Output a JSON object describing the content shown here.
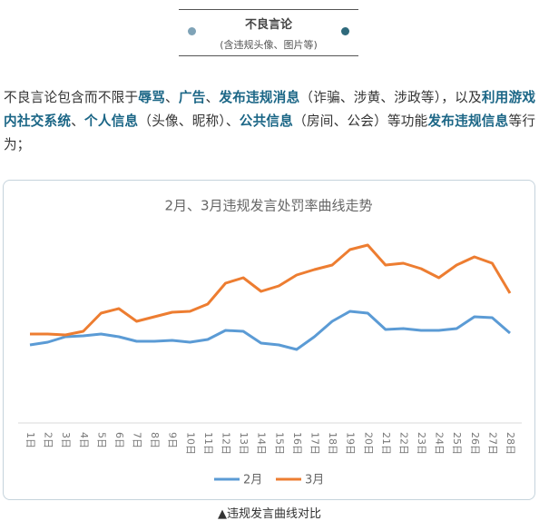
{
  "header": {
    "title": "不良言论",
    "subtitle": "(含违规头像、图片等)"
  },
  "paragraph": [
    {
      "text": "不良言论包含而不限于",
      "strong": false
    },
    {
      "text": "辱骂",
      "strong": true
    },
    {
      "text": "、",
      "strong": false
    },
    {
      "text": "广告",
      "strong": true
    },
    {
      "text": "、",
      "strong": false
    },
    {
      "text": "发布违规消息",
      "strong": true
    },
    {
      "text": "（诈骗、涉黄、涉政等），以及",
      "strong": false
    },
    {
      "text": "利用游戏内社交系统",
      "strong": true
    },
    {
      "text": "、",
      "strong": false
    },
    {
      "text": "个人信息",
      "strong": true
    },
    {
      "text": "（头像、昵称）、",
      "strong": false
    },
    {
      "text": "公共信息",
      "strong": true
    },
    {
      "text": "（房间、公会）等功能",
      "strong": false
    },
    {
      "text": "发布违规信息",
      "strong": true
    },
    {
      "text": "等行为；",
      "strong": false
    }
  ],
  "chart_data": {
    "type": "line",
    "title": "2月、3月违规发言处罚率曲线走势",
    "categories": [
      "1日",
      "2日",
      "3日",
      "4日",
      "5日",
      "6日",
      "7日",
      "8日",
      "9日",
      "10日",
      "11日",
      "12日",
      "13日",
      "14日",
      "15日",
      "16日",
      "17日",
      "18日",
      "19日",
      "20日",
      "21日",
      "22日",
      "23日",
      "24日",
      "25日",
      "26日",
      "27日",
      "28日"
    ],
    "series": [
      {
        "name": "2月",
        "color": "#5b9bd5",
        "values": [
          43,
          44.5,
          47.5,
          48,
          49,
          47.5,
          45,
          45,
          45.5,
          44.5,
          46,
          51,
          50.5,
          44,
          43,
          40.5,
          47.5,
          56,
          61.5,
          60.5,
          51.5,
          52,
          51,
          51,
          52,
          58.5,
          58,
          49.5
        ]
      },
      {
        "name": "3月",
        "color": "#ed7d31",
        "values": [
          49,
          49,
          48.5,
          50.5,
          60.5,
          63,
          56,
          58.5,
          61,
          61.5,
          65.5,
          77,
          80,
          72.5,
          75.5,
          81.5,
          84.5,
          87,
          95.5,
          98,
          87,
          88,
          85,
          80,
          87,
          91.5,
          88,
          71.5
        ]
      }
    ],
    "ylim": [
      0,
      110
    ],
    "grid": false,
    "legend": "bottom"
  },
  "caption": "▲违规发言曲线对比"
}
